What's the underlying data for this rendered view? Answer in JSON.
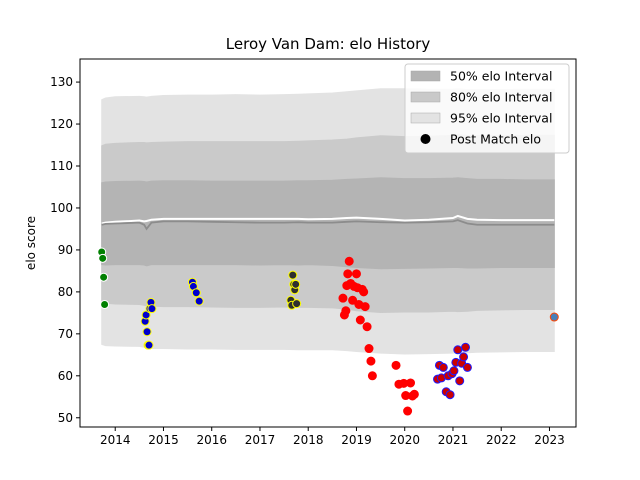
{
  "chart_data": {
    "type": "scatter",
    "title": "Leroy Van Dam: elo History",
    "xlabel": "",
    "ylabel": "elo score",
    "xlim": [
      2013.27,
      2023.55
    ],
    "ylim": [
      47.8,
      135.5
    ],
    "xticks": [
      2014,
      2015,
      2016,
      2017,
      2018,
      2019,
      2020,
      2021,
      2022,
      2023
    ],
    "yticks": [
      50,
      60,
      70,
      80,
      90,
      100,
      110,
      120,
      130
    ],
    "grid": false,
    "legend_position": "top-right",
    "legend": [
      {
        "label": "50% elo Interval",
        "kind": "patch",
        "color": "#b3b3b3"
      },
      {
        "label": "80% elo Interval",
        "kind": "patch",
        "color": "#c9c9c9"
      },
      {
        "label": "95% elo Interval",
        "kind": "patch",
        "color": "#e3e3e3"
      },
      {
        "label": "Post Match elo",
        "kind": "marker",
        "color": "#000000"
      }
    ],
    "bands": {
      "x": [
        2013.72,
        2013.8,
        2014.0,
        2014.5,
        2014.6,
        2014.65,
        2014.75,
        2015.0,
        2015.5,
        2016.0,
        2016.5,
        2017.0,
        2017.5,
        2017.8,
        2018.0,
        2018.5,
        2018.8,
        2019.0,
        2019.5,
        2020.0,
        2020.5,
        2021.0,
        2021.1,
        2021.3,
        2021.5,
        2022.0,
        2022.5,
        2023.0,
        2023.1
      ],
      "mean": [
        96.3,
        96.5,
        96.7,
        97.0,
        96.8,
        96.9,
        97.2,
        97.4,
        97.4,
        97.4,
        97.4,
        97.4,
        97.4,
        97.4,
        97.3,
        97.4,
        97.6,
        97.7,
        97.4,
        97.0,
        97.2,
        97.6,
        98.1,
        97.4,
        97.2,
        97.1,
        97.1,
        97.1,
        97.1
      ],
      "median": [
        96.0,
        96.2,
        96.3,
        96.5,
        96.0,
        95.0,
        96.5,
        96.8,
        96.8,
        96.7,
        96.6,
        96.5,
        96.5,
        96.6,
        96.5,
        96.5,
        96.7,
        96.8,
        96.6,
        96.5,
        96.6,
        96.8,
        97.1,
        96.3,
        96.0,
        96.0,
        96.0,
        96.0,
        96.0
      ],
      "p50_low": [
        86.5,
        86.4,
        86.5,
        86.5,
        86.4,
        86.2,
        86.5,
        86.5,
        86.5,
        86.5,
        86.5,
        86.4,
        86.5,
        86.4,
        86.5,
        86.3,
        86.0,
        85.8,
        85.5,
        85.6,
        85.7,
        85.8,
        85.8,
        85.7,
        85.7,
        85.8,
        85.8,
        85.8,
        85.8
      ],
      "p50_high": [
        106.0,
        106.2,
        106.3,
        106.4,
        106.3,
        106.2,
        106.4,
        106.5,
        106.5,
        106.4,
        106.4,
        106.4,
        106.4,
        106.5,
        106.5,
        106.6,
        106.8,
        106.9,
        107.2,
        107.0,
        107.0,
        107.1,
        107.2,
        107.0,
        106.8,
        106.8,
        106.7,
        106.7,
        106.7
      ],
      "p80_low": [
        77.5,
        77.3,
        77.1,
        77.0,
        76.8,
        76.6,
        76.6,
        76.5,
        76.5,
        76.4,
        76.3,
        76.3,
        76.4,
        76.3,
        76.3,
        76.2,
        75.9,
        75.5,
        75.1,
        75.2,
        75.2,
        75.4,
        75.3,
        75.4,
        75.6,
        75.7,
        75.8,
        75.8,
        75.8
      ],
      "p80_high": [
        114.8,
        115.2,
        115.4,
        115.6,
        115.6,
        115.5,
        115.6,
        115.7,
        115.8,
        115.8,
        115.8,
        115.8,
        115.8,
        115.9,
        116.0,
        116.2,
        116.4,
        116.7,
        117.2,
        117.0,
        117.1,
        117.3,
        117.5,
        117.3,
        117.2,
        117.2,
        117.3,
        117.3,
        117.3
      ],
      "p95_low": [
        67.5,
        67.2,
        67.1,
        67.0,
        66.8,
        66.6,
        66.5,
        66.5,
        66.4,
        66.4,
        66.3,
        66.3,
        66.3,
        66.2,
        66.2,
        66.2,
        66.0,
        65.8,
        65.4,
        65.2,
        65.3,
        65.4,
        65.5,
        65.5,
        65.6,
        65.7,
        65.8,
        65.8,
        65.8
      ],
      "p95_high": [
        125.8,
        126.2,
        126.5,
        126.6,
        126.5,
        126.4,
        126.6,
        126.8,
        126.9,
        126.9,
        127.0,
        126.9,
        127.0,
        127.1,
        127.2,
        127.4,
        127.7,
        127.9,
        128.4,
        128.4,
        128.3,
        128.3,
        128.4,
        128.2,
        128.2,
        128.2,
        128.3,
        128.3,
        128.3
      ]
    },
    "series": [
      {
        "face": "#008000",
        "edge": "#ffffff",
        "x": [
          2013.72,
          2013.74,
          2013.76,
          2013.78
        ],
        "y": [
          89.5,
          88.0,
          83.5,
          77.0
        ]
      },
      {
        "face": "#0000cd",
        "edge": "#ffff00",
        "x": [
          2014.62,
          2014.64,
          2014.66,
          2014.68,
          2014.7,
          2014.72,
          2014.74,
          2014.76
        ],
        "y": [
          73.0,
          74.5,
          70.5,
          67.3,
          67.3,
          76.0,
          77.5,
          76.0
        ]
      },
      {
        "face": "#0000cd",
        "edge": "#ffff00",
        "x": [
          2015.6,
          2015.62,
          2015.68,
          2015.74
        ],
        "y": [
          82.3,
          81.3,
          79.8,
          77.8
        ]
      },
      {
        "face": "#2f2f2f",
        "edge": "#ffff00",
        "x": [
          2017.64,
          2017.66,
          2017.68,
          2017.7,
          2017.72,
          2017.74,
          2017.76
        ],
        "y": [
          78.0,
          76.8,
          84.0,
          81.8,
          80.5,
          81.8,
          77.2
        ]
      },
      {
        "face": "#ff0000",
        "edge": "#ff0000",
        "x": [
          2018.72,
          2018.75,
          2018.78,
          2018.8,
          2018.82,
          2018.85,
          2018.88,
          2018.92,
          2018.95,
          2019.0,
          2019.02,
          2019.05,
          2019.08,
          2019.12,
          2019.15,
          2019.18,
          2019.22,
          2019.26,
          2019.3,
          2019.33,
          2019.82,
          2019.88,
          2019.98,
          2020.02,
          2020.06,
          2020.12,
          2020.16,
          2020.2
        ],
        "y": [
          78.5,
          74.5,
          75.5,
          81.5,
          84.3,
          87.3,
          82.0,
          78.0,
          81.3,
          84.3,
          81.0,
          77.0,
          73.3,
          80.6,
          80.0,
          76.5,
          71.7,
          66.5,
          63.5,
          60.0,
          62.5,
          58.0,
          58.2,
          55.3,
          51.6,
          58.3,
          55.2,
          55.6
        ]
      },
      {
        "face": "#cc0000",
        "edge": "#1c1cff",
        "x": [
          2020.68,
          2020.72,
          2020.76,
          2020.8,
          2020.86,
          2020.9,
          2020.94,
          2020.98,
          2021.02,
          2021.06,
          2021.1,
          2021.14,
          2021.18,
          2021.22,
          2021.26,
          2021.3
        ],
        "y": [
          59.2,
          62.5,
          59.5,
          62.0,
          56.2,
          60.0,
          55.5,
          60.5,
          61.2,
          63.2,
          66.2,
          58.8,
          63.0,
          64.5,
          66.8,
          62.0
        ]
      },
      {
        "face": "#4a7fb8",
        "edge": "#ff4500",
        "x": [
          2023.1
        ],
        "y": [
          74.0
        ]
      }
    ]
  }
}
